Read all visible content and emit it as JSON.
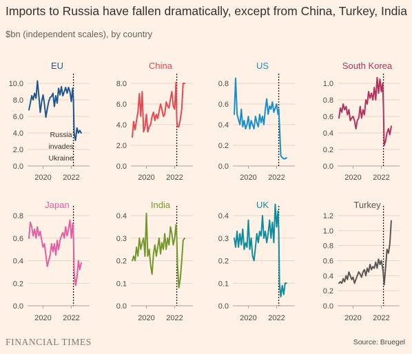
{
  "header": {
    "title": "Imports to Russia have fallen dramatically, except from China, Turkey, India",
    "subtitle": "$bn (independent scales), by country"
  },
  "footer": {
    "brand": "FINANCIAL TIMES",
    "source": "Source: Bruegel"
  },
  "chart_data": [
    {
      "type": "line",
      "title": "EU",
      "color": "#1e558c",
      "ylim": [
        0,
        10
      ],
      "yticks": [
        "0.0",
        "2.0",
        "4.0",
        "6.0",
        "8.0",
        "10.0"
      ],
      "xlim": [
        2019.0,
        2023.0
      ],
      "xticks": [
        "2020",
        "2022"
      ],
      "event_x": 2022.15,
      "annotation": [
        "Russia",
        "invades",
        "Ukraine"
      ],
      "x": [
        2019.0,
        2019.1,
        2019.2,
        2019.3,
        2019.4,
        2019.5,
        2019.6,
        2019.7,
        2019.8,
        2019.9,
        2020.0,
        2020.1,
        2020.2,
        2020.3,
        2020.4,
        2020.5,
        2020.6,
        2020.7,
        2020.8,
        2020.9,
        2021.0,
        2021.1,
        2021.2,
        2021.3,
        2021.4,
        2021.5,
        2021.6,
        2021.7,
        2021.8,
        2021.9,
        2022.0,
        2022.1,
        2022.15,
        2022.2,
        2022.3,
        2022.4,
        2022.5,
        2022.6,
        2022.7
      ],
      "values": [
        6.8,
        7.6,
        8.5,
        8.0,
        8.8,
        8.2,
        10.3,
        8.5,
        6.5,
        7.8,
        8.6,
        7.5,
        5.9,
        6.9,
        7.8,
        8.3,
        8.4,
        8.8,
        7.2,
        8.5,
        7.6,
        9.4,
        8.6,
        9.6,
        8.5,
        9.0,
        9.5,
        8.8,
        9.5,
        9.0,
        7.8,
        9.4,
        8.0,
        3.9,
        3.1,
        4.6,
        4.0,
        4.3,
        4.0
      ]
    },
    {
      "type": "line",
      "title": "China",
      "color": "#e8474f",
      "ylim": [
        0,
        8
      ],
      "yticks": [
        "0.0",
        "2.0",
        "4.0",
        "6.0",
        "8.0"
      ],
      "xlim": [
        2019.0,
        2023.0
      ],
      "xticks": [
        "2020",
        "2022"
      ],
      "event_x": 2022.15,
      "x": [
        2019.0,
        2019.1,
        2019.2,
        2019.3,
        2019.4,
        2019.5,
        2019.6,
        2019.7,
        2019.8,
        2019.9,
        2020.0,
        2020.1,
        2020.2,
        2020.3,
        2020.4,
        2020.5,
        2020.6,
        2020.7,
        2020.8,
        2020.9,
        2021.0,
        2021.1,
        2021.2,
        2021.3,
        2021.4,
        2021.5,
        2021.6,
        2021.7,
        2021.8,
        2021.9,
        2022.0,
        2022.1,
        2022.15,
        2022.2,
        2022.3,
        2022.4,
        2022.5,
        2022.6,
        2022.7
      ],
      "values": [
        2.8,
        4.3,
        3.5,
        4.4,
        5.2,
        7.0,
        4.8,
        7.2,
        3.3,
        3.8,
        5.0,
        3.3,
        3.8,
        4.0,
        4.8,
        5.2,
        4.4,
        5.0,
        4.6,
        5.3,
        6.0,
        5.5,
        4.8,
        5.0,
        6.2,
        5.8,
        5.6,
        6.5,
        7.2,
        5.8,
        5.5,
        8.1,
        4.4,
        3.8,
        3.8,
        4.5,
        5.5,
        8.0,
        8.0
      ]
    },
    {
      "type": "line",
      "title": "US",
      "color": "#1a8fc9",
      "ylim": [
        0,
        0.8
      ],
      "yticks": [
        "0.0",
        "0.2",
        "0.4",
        "0.6",
        "0.8"
      ],
      "xlim": [
        2019.0,
        2023.0
      ],
      "xticks": [
        "2020",
        "2022"
      ],
      "event_x": 2022.15,
      "x": [
        2019.0,
        2019.1,
        2019.2,
        2019.3,
        2019.4,
        2019.5,
        2019.6,
        2019.7,
        2019.8,
        2019.9,
        2020.0,
        2020.1,
        2020.2,
        2020.3,
        2020.4,
        2020.5,
        2020.6,
        2020.7,
        2020.8,
        2020.9,
        2021.0,
        2021.1,
        2021.2,
        2021.3,
        2021.4,
        2021.5,
        2021.6,
        2021.7,
        2021.8,
        2021.9,
        2022.0,
        2022.1,
        2022.15,
        2022.2,
        2022.3,
        2022.4,
        2022.5,
        2022.6,
        2022.7
      ],
      "values": [
        0.5,
        0.85,
        0.5,
        0.45,
        0.4,
        0.55,
        0.38,
        0.44,
        0.36,
        0.4,
        0.48,
        0.36,
        0.44,
        0.4,
        0.36,
        0.48,
        0.42,
        0.38,
        0.5,
        0.42,
        0.48,
        0.4,
        0.55,
        0.65,
        0.5,
        0.58,
        0.55,
        0.62,
        0.52,
        0.56,
        0.6,
        0.5,
        0.55,
        0.4,
        0.1,
        0.08,
        0.07,
        0.07,
        0.08
      ]
    },
    {
      "type": "line",
      "title": "South Korea",
      "color": "#b1325f",
      "ylim": [
        0,
        1.0
      ],
      "yticks": [
        "0.0",
        "0.2",
        "0.4",
        "0.6",
        "0.8",
        "1.0"
      ],
      "xlim": [
        2019.0,
        2023.0
      ],
      "xticks": [
        "2020",
        "2022"
      ],
      "event_x": 2022.15,
      "x": [
        2019.0,
        2019.1,
        2019.2,
        2019.3,
        2019.4,
        2019.5,
        2019.6,
        2019.7,
        2019.8,
        2019.9,
        2020.0,
        2020.1,
        2020.2,
        2020.3,
        2020.4,
        2020.5,
        2020.6,
        2020.7,
        2020.8,
        2020.9,
        2021.0,
        2021.1,
        2021.2,
        2021.3,
        2021.4,
        2021.5,
        2021.6,
        2021.7,
        2021.8,
        2021.9,
        2022.0,
        2022.1,
        2022.15,
        2022.2,
        2022.3,
        2022.4,
        2022.5,
        2022.6,
        2022.7
      ],
      "values": [
        0.58,
        0.7,
        0.65,
        0.75,
        0.68,
        0.72,
        0.62,
        0.68,
        0.55,
        0.58,
        0.6,
        0.55,
        0.45,
        0.55,
        0.58,
        0.72,
        0.58,
        0.68,
        0.62,
        0.8,
        0.75,
        0.9,
        0.82,
        0.88,
        0.8,
        0.95,
        0.8,
        1.07,
        0.88,
        1.05,
        0.9,
        1.0,
        0.7,
        0.25,
        0.3,
        0.4,
        0.45,
        0.38,
        0.48
      ]
    },
    {
      "type": "line",
      "title": "Japan",
      "color": "#e65da3",
      "ylim": [
        0,
        0.8
      ],
      "yticks": [
        "0.0",
        "0.2",
        "0.4",
        "0.6",
        "0.8"
      ],
      "xlim": [
        2019.0,
        2023.0
      ],
      "xticks": [
        "2020",
        "2022"
      ],
      "event_x": 2022.15,
      "x": [
        2019.0,
        2019.1,
        2019.2,
        2019.3,
        2019.4,
        2019.5,
        2019.6,
        2019.7,
        2019.8,
        2019.9,
        2020.0,
        2020.1,
        2020.2,
        2020.3,
        2020.4,
        2020.5,
        2020.6,
        2020.7,
        2020.8,
        2020.9,
        2021.0,
        2021.1,
        2021.2,
        2021.3,
        2021.4,
        2021.5,
        2021.6,
        2021.7,
        2021.8,
        2021.9,
        2022.0,
        2022.1,
        2022.15,
        2022.2,
        2022.3,
        2022.4,
        2022.5,
        2022.6,
        2022.7
      ],
      "values": [
        0.6,
        0.74,
        0.7,
        0.62,
        0.68,
        0.6,
        0.7,
        0.62,
        0.66,
        0.58,
        0.52,
        0.55,
        0.45,
        0.35,
        0.4,
        0.45,
        0.55,
        0.48,
        0.55,
        0.45,
        0.58,
        0.5,
        0.58,
        0.62,
        0.65,
        0.6,
        0.7,
        0.62,
        0.68,
        0.76,
        0.6,
        0.73,
        0.62,
        0.3,
        0.18,
        0.25,
        0.4,
        0.32,
        0.38
      ]
    },
    {
      "type": "line",
      "title": "India",
      "color": "#73962d",
      "ylim": [
        0,
        0.4
      ],
      "yticks": [
        "0.0",
        "0.1",
        "0.2",
        "0.3",
        "0.4"
      ],
      "xlim": [
        2019.0,
        2023.0
      ],
      "xticks": [
        "2020",
        "2022"
      ],
      "event_x": 2022.15,
      "x": [
        2019.0,
        2019.1,
        2019.2,
        2019.3,
        2019.4,
        2019.5,
        2019.6,
        2019.7,
        2019.8,
        2019.9,
        2020.0,
        2020.1,
        2020.2,
        2020.3,
        2020.4,
        2020.5,
        2020.6,
        2020.7,
        2020.8,
        2020.9,
        2021.0,
        2021.1,
        2021.2,
        2021.3,
        2021.4,
        2021.5,
        2021.6,
        2021.7,
        2021.8,
        2021.9,
        2022.0,
        2022.1,
        2022.15,
        2022.2,
        2022.3,
        2022.4,
        2022.5,
        2022.6,
        2022.7
      ],
      "values": [
        0.2,
        0.22,
        0.2,
        0.26,
        0.22,
        0.3,
        0.25,
        0.28,
        0.3,
        0.22,
        0.41,
        0.22,
        0.25,
        0.18,
        0.14,
        0.23,
        0.27,
        0.22,
        0.26,
        0.3,
        0.23,
        0.28,
        0.25,
        0.32,
        0.25,
        0.3,
        0.27,
        0.35,
        0.32,
        0.27,
        0.3,
        0.36,
        0.3,
        0.18,
        0.08,
        0.12,
        0.2,
        0.29,
        0.3
      ]
    },
    {
      "type": "line",
      "title": "UK",
      "color": "#0f8c9e",
      "ylim": [
        0,
        0.4
      ],
      "yticks": [
        "0.0",
        "0.1",
        "0.2",
        "0.3",
        "0.4"
      ],
      "xlim": [
        2019.0,
        2023.0
      ],
      "xticks": [
        "2020",
        "2022"
      ],
      "event_x": 2022.15,
      "x": [
        2019.0,
        2019.1,
        2019.2,
        2019.3,
        2019.4,
        2019.5,
        2019.6,
        2019.7,
        2019.8,
        2019.9,
        2020.0,
        2020.1,
        2020.2,
        2020.3,
        2020.4,
        2020.5,
        2020.6,
        2020.7,
        2020.8,
        2020.9,
        2021.0,
        2021.1,
        2021.2,
        2021.3,
        2021.4,
        2021.5,
        2021.6,
        2021.7,
        2021.8,
        2021.9,
        2022.0,
        2022.1,
        2022.15,
        2022.2,
        2022.3,
        2022.4,
        2022.5,
        2022.6,
        2022.7
      ],
      "values": [
        0.3,
        0.26,
        0.33,
        0.26,
        0.32,
        0.27,
        0.34,
        0.25,
        0.28,
        0.26,
        0.38,
        0.25,
        0.3,
        0.22,
        0.2,
        0.26,
        0.32,
        0.28,
        0.33,
        0.31,
        0.4,
        0.3,
        0.33,
        0.28,
        0.32,
        0.38,
        0.3,
        0.37,
        0.28,
        0.45,
        0.35,
        0.42,
        0.33,
        0.1,
        0.04,
        0.09,
        0.05,
        0.1,
        0.1
      ]
    },
    {
      "type": "line",
      "title": "Turkey",
      "color": "#5a5553",
      "ylim": [
        0,
        1.2
      ],
      "yticks": [
        "0.0",
        "0.2",
        "0.4",
        "0.6",
        "0.8",
        "1.0",
        "1.2"
      ],
      "xlim": [
        2019.0,
        2023.0
      ],
      "xticks": [
        "2020",
        "2022"
      ],
      "event_x": 2022.15,
      "x": [
        2019.0,
        2019.1,
        2019.2,
        2019.3,
        2019.4,
        2019.5,
        2019.6,
        2019.7,
        2019.8,
        2019.9,
        2020.0,
        2020.1,
        2020.2,
        2020.3,
        2020.4,
        2020.5,
        2020.6,
        2020.7,
        2020.8,
        2020.9,
        2021.0,
        2021.1,
        2021.2,
        2021.3,
        2021.4,
        2021.5,
        2021.6,
        2021.7,
        2021.8,
        2021.9,
        2022.0,
        2022.1,
        2022.15,
        2022.2,
        2022.3,
        2022.4,
        2022.5,
        2022.6,
        2022.7
      ],
      "values": [
        0.3,
        0.32,
        0.3,
        0.36,
        0.32,
        0.4,
        0.35,
        0.45,
        0.4,
        0.35,
        0.38,
        0.3,
        0.35,
        0.4,
        0.45,
        0.42,
        0.38,
        0.45,
        0.48,
        0.4,
        0.5,
        0.45,
        0.55,
        0.48,
        0.52,
        0.5,
        0.58,
        0.5,
        0.62,
        0.55,
        0.6,
        0.5,
        0.4,
        0.28,
        0.5,
        0.75,
        0.7,
        0.82,
        1.13
      ]
    }
  ]
}
